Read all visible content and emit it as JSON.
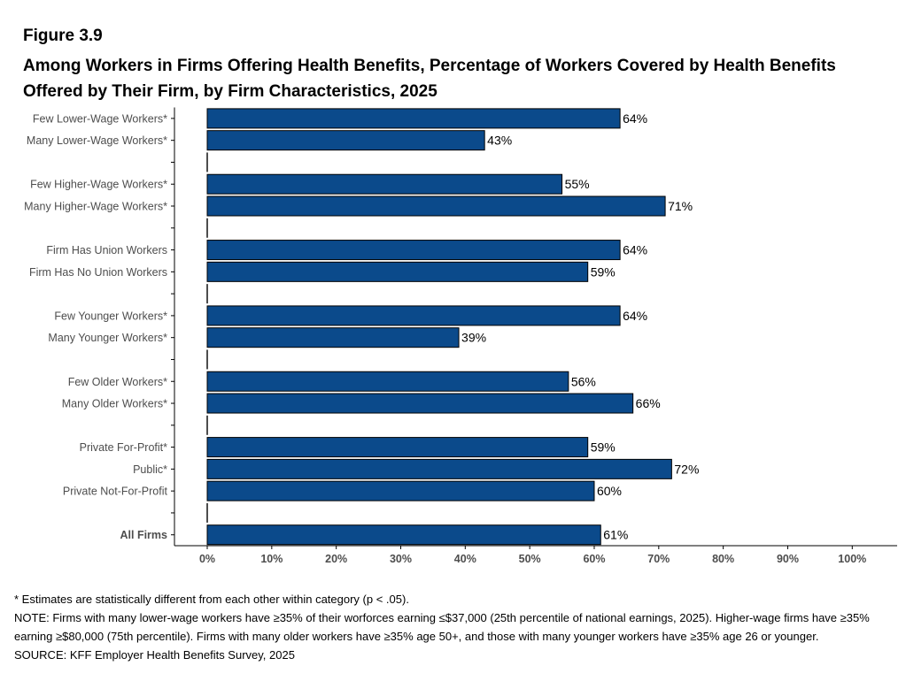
{
  "figure_label": "Figure 3.9",
  "title": "Among Workers in Firms Offering Health Benefits, Percentage of Workers Covered by Health Benefits Offered by Their Firm, by Firm Characteristics, 2025",
  "colors": {
    "bar": "#0b4a8b",
    "bar_stroke": "#000000",
    "text": "#000000",
    "axis_text": "#4d4d4d"
  },
  "notes": {
    "asterisk": "* Estimates are statistically different from each other within category (p < .05).",
    "note": "NOTE: Firms with many lower-wage workers have ≥35% of their worforces earning ≤$37,000 (25th percentile of national earnings, 2025). Higher-wage firms have ≥35% earning ≥$80,000 (75th percentile). Firms with many older workers have ≥35% age 50+, and those with many younger workers have ≥35% age 26 or younger.",
    "source": "SOURCE: KFF Employer Health Benefits Survey, 2025"
  },
  "chart_data": {
    "type": "bar",
    "orientation": "horizontal",
    "categories": [
      "Few Lower-Wage Workers*",
      "Many Lower-Wage Workers*",
      "",
      "Few Higher-Wage Workers*",
      "Many Higher-Wage Workers*",
      "",
      "Firm Has Union Workers",
      "Firm Has No Union Workers",
      "",
      "Few Younger Workers*",
      "Many Younger Workers*",
      "",
      "Few Older Workers*",
      "Many Older Workers*",
      "",
      "Private For-Profit*",
      "Public*",
      "Private Not-For-Profit",
      "",
      "All Firms"
    ],
    "values": [
      64,
      43,
      null,
      55,
      71,
      null,
      64,
      59,
      null,
      64,
      39,
      null,
      56,
      66,
      null,
      59,
      72,
      60,
      null,
      61
    ],
    "data_labels": [
      "64%",
      "43%",
      "",
      "55%",
      "71%",
      "",
      "64%",
      "59%",
      "",
      "64%",
      "39%",
      "",
      "56%",
      "66%",
      "",
      "59%",
      "72%",
      "60%",
      "",
      "61%"
    ],
    "bold_categories": [
      "All Firms"
    ],
    "xlim": [
      0,
      100
    ],
    "xticks": [
      0,
      10,
      20,
      30,
      40,
      50,
      60,
      70,
      80,
      90,
      100
    ],
    "xtick_labels": [
      "0%",
      "10%",
      "20%",
      "30%",
      "40%",
      "50%",
      "60%",
      "70%",
      "80%",
      "90%",
      "100%"
    ],
    "xlabel": "",
    "ylabel": "",
    "grid": false,
    "legend": "none"
  }
}
